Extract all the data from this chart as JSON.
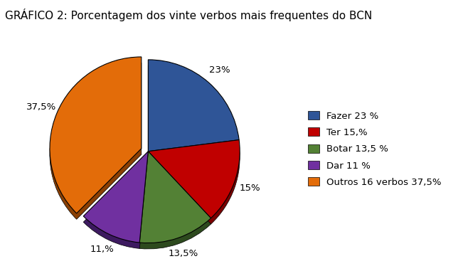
{
  "title": "GRÁFICO 2: Porcentagem dos vinte verbos mais frequentes do BCN",
  "slices": [
    23,
    15,
    13.5,
    11,
    37.5
  ],
  "labels": [
    "23%",
    "15%",
    "13,5%",
    "11,%",
    "37,5%"
  ],
  "colors": [
    "#2F5597",
    "#C00000",
    "#538135",
    "#7030A0",
    "#E36C09"
  ],
  "dark_colors": [
    "#1a3260",
    "#7a0000",
    "#2d4a1e",
    "#3d1a60",
    "#8a4005"
  ],
  "legend_labels": [
    "Fazer 23 %",
    "Ter 15,%",
    "Botar 13,5 %",
    "Dar 11 %",
    "Outros 16 verbos 37,5%"
  ],
  "startangle": 90,
  "title_fontsize": 11,
  "label_fontsize": 9.5,
  "legend_fontsize": 9.5,
  "explode_idx": 4,
  "explode_amount": 0.08
}
